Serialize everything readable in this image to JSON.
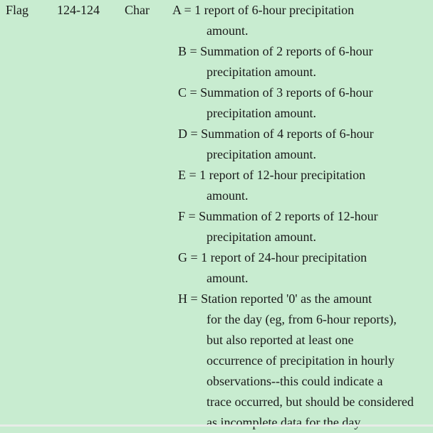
{
  "field": {
    "name": "Flag",
    "position": "124-124",
    "type": "Char"
  },
  "values": [
    {
      "lines": [
        "A = 1 report of 6-hour precipitation",
        "amount."
      ]
    },
    {
      "lines": [
        "B = Summation of 2 reports of 6-hour",
        "precipitation amount."
      ]
    },
    {
      "lines": [
        "C = Summation of 3 reports of 6-hour",
        "precipitation amount."
      ]
    },
    {
      "lines": [
        "D = Summation of 4 reports of 6-hour",
        "precipitation amount."
      ]
    },
    {
      "lines": [
        "E = 1 report of 12-hour precipitation",
        "amount."
      ]
    },
    {
      "lines": [
        "F = Summation of 2 reports of 12-hour",
        "precipitation amount."
      ]
    },
    {
      "lines": [
        "G = 1 report of 24-hour precipitation",
        "amount."
      ]
    },
    {
      "lines": [
        "H = Station reported '0' as the amount",
        "for the day (eg, from 6-hour reports),",
        "but also reported at least one",
        "occurrence of precipitation in hourly",
        "observations--this could indicate a",
        "trace occurred, but should be considered",
        "as incomplete data for the day."
      ]
    }
  ]
}
